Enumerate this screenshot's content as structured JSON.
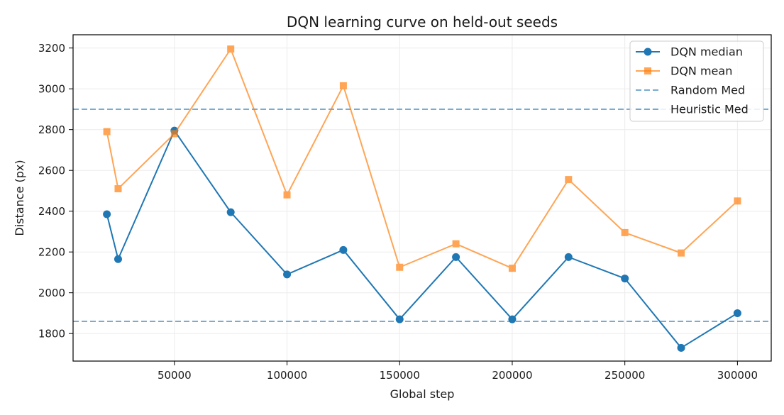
{
  "chart_data": {
    "type": "line",
    "title": "DQN learning curve on held-out seeds",
    "xlabel": "Global step",
    "ylabel": "Distance (px)",
    "xlim": [
      5000,
      315000
    ],
    "ylim": [
      1665,
      3265
    ],
    "xticks": [
      50000,
      100000,
      150000,
      200000,
      250000,
      300000
    ],
    "yticks": [
      1800,
      2000,
      2200,
      2400,
      2600,
      2800,
      3000,
      3200
    ],
    "grid": true,
    "legend_position": "top-right",
    "x": [
      20000,
      25000,
      50000,
      75000,
      100000,
      125000,
      150000,
      175000,
      200000,
      225000,
      250000,
      275000,
      300000
    ],
    "series": [
      {
        "name": "DQN median",
        "color": "#1f77b4",
        "marker": "circle",
        "values": [
          2385,
          2165,
          2795,
          2395,
          2090,
          2210,
          1870,
          2175,
          1870,
          2175,
          2070,
          1730,
          1900
        ]
      },
      {
        "name": "DQN mean",
        "color": "#ff7f0e",
        "marker": "square",
        "values": [
          2790,
          2510,
          2780,
          3195,
          2480,
          3015,
          2125,
          2240,
          2120,
          2555,
          2295,
          2195,
          2450
        ]
      }
    ],
    "reference_lines": [
      {
        "name": "Random Med",
        "value": 2900,
        "color": "#1f77b4",
        "style": "dashed"
      },
      {
        "name": "Heuristic Med",
        "value": 1860,
        "color": "#1f77b4",
        "style": "dashed"
      }
    ]
  }
}
